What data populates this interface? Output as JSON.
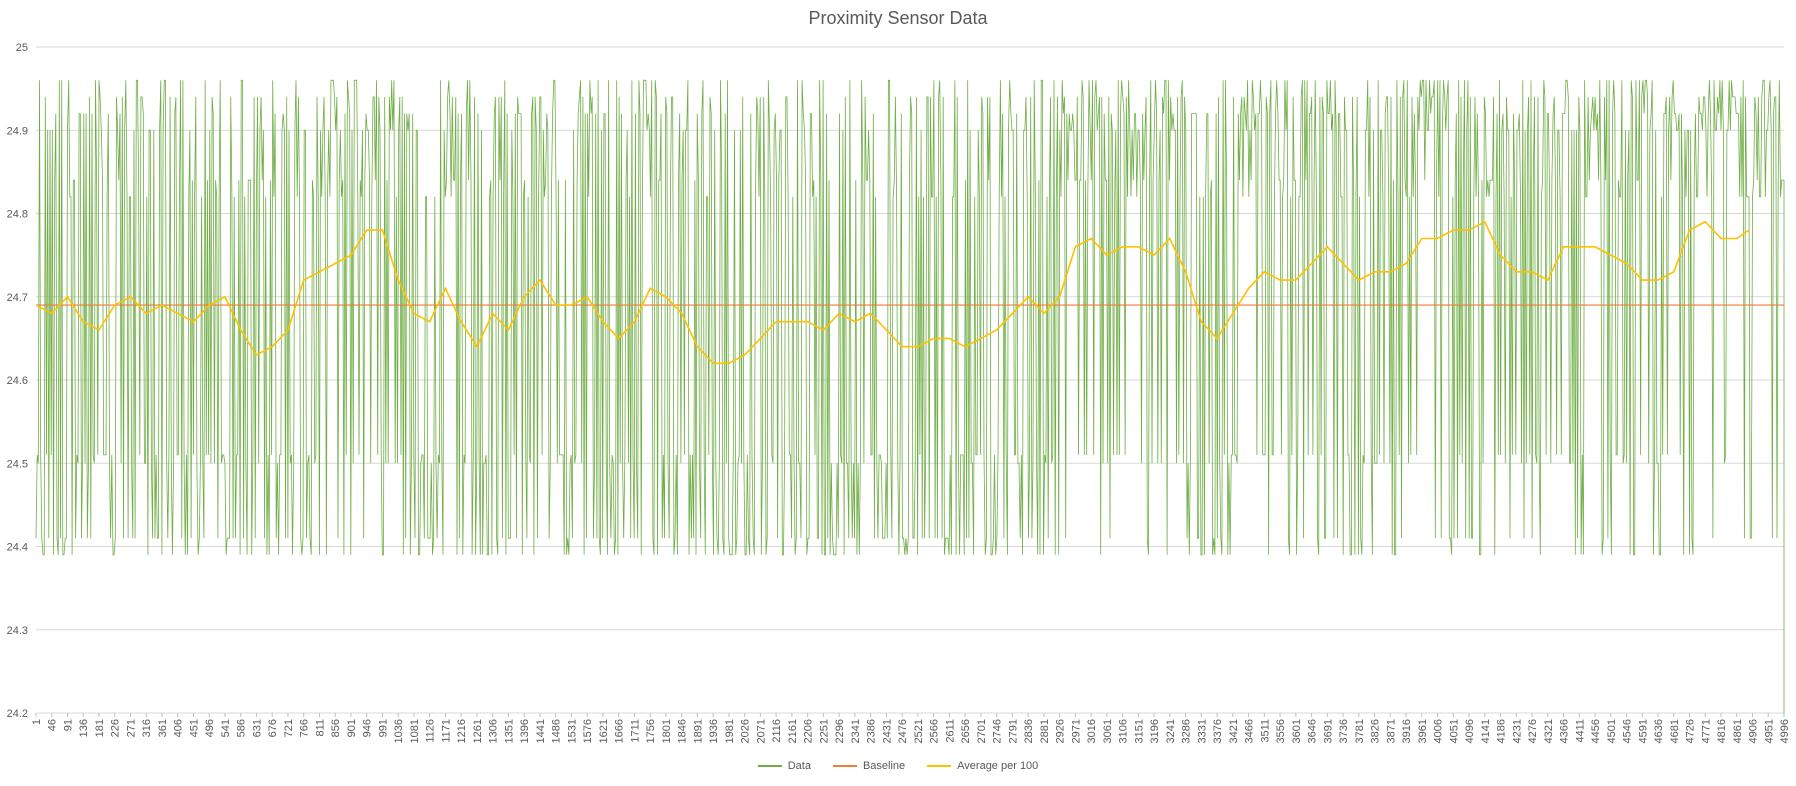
{
  "chart_data": {
    "type": "line",
    "title": "Proximity Sensor Data",
    "xlabel": "",
    "ylabel": "",
    "ylim": [
      24.2,
      25
    ],
    "yticks": [
      "24.2",
      "24.3",
      "24.4",
      "24.5",
      "24.6",
      "24.7",
      "24.8",
      "24.9",
      "25"
    ],
    "grid": true,
    "legend_position": "bottom",
    "x_range": [
      1,
      4996
    ],
    "x_tick_step": 45,
    "series": [
      {
        "name": "Data",
        "color": "#70ad47",
        "note_values": "noisy readings oscillating between 24.39 and 24.96; final reading drops to 24.2",
        "min": 24.39,
        "max": 24.96,
        "last_value": 24.2
      },
      {
        "name": "Baseline",
        "color": "#ed7d31",
        "x": [
          1,
          4996
        ],
        "values": [
          24.69,
          24.69
        ]
      },
      {
        "name": "Average per 100",
        "color": "#ffc000",
        "x": [
          1,
          46,
          91,
          136,
          181,
          226,
          271,
          316,
          361,
          406,
          451,
          496,
          541,
          586,
          631,
          676,
          721,
          766,
          811,
          856,
          901,
          946,
          991,
          1036,
          1081,
          1126,
          1171,
          1216,
          1261,
          1306,
          1351,
          1396,
          1441,
          1486,
          1531,
          1576,
          1621,
          1666,
          1711,
          1756,
          1801,
          1846,
          1891,
          1936,
          1981,
          2026,
          2071,
          2116,
          2161,
          2206,
          2251,
          2296,
          2341,
          2386,
          2431,
          2476,
          2521,
          2566,
          2611,
          2656,
          2701,
          2746,
          2791,
          2836,
          2881,
          2926,
          2971,
          3016,
          3061,
          3106,
          3151,
          3196,
          3241,
          3286,
          3331,
          3376,
          3421,
          3466,
          3511,
          3556,
          3601,
          3646,
          3691,
          3736,
          3781,
          3826,
          3871,
          3916,
          3961,
          4006,
          4051,
          4096,
          4141,
          4186,
          4231,
          4276,
          4321,
          4366,
          4411,
          4456,
          4501,
          4546,
          4591,
          4636,
          4681,
          4726,
          4771,
          4816,
          4861,
          4896
        ],
        "values": [
          24.69,
          24.68,
          24.7,
          24.67,
          24.66,
          24.69,
          24.7,
          24.68,
          24.69,
          24.68,
          24.67,
          24.69,
          24.7,
          24.66,
          24.63,
          24.64,
          24.66,
          24.72,
          24.73,
          24.74,
          24.75,
          24.78,
          24.78,
          24.72,
          24.68,
          24.67,
          24.71,
          24.67,
          24.64,
          24.68,
          24.66,
          24.7,
          24.72,
          24.69,
          24.69,
          24.7,
          24.67,
          24.65,
          24.67,
          24.71,
          24.7,
          24.68,
          24.64,
          24.62,
          24.62,
          24.63,
          24.65,
          24.67,
          24.67,
          24.67,
          24.66,
          24.68,
          24.67,
          24.68,
          24.66,
          24.64,
          24.64,
          24.65,
          24.65,
          24.64,
          24.65,
          24.66,
          24.68,
          24.7,
          24.68,
          24.7,
          24.76,
          24.77,
          24.75,
          24.76,
          24.76,
          24.75,
          24.77,
          24.73,
          24.67,
          24.65,
          24.68,
          24.71,
          24.73,
          24.72,
          24.72,
          24.74,
          24.76,
          24.74,
          24.72,
          24.73,
          24.73,
          24.74,
          24.77,
          24.77,
          24.78,
          24.78,
          24.79,
          24.75,
          24.73,
          24.73,
          24.72,
          24.76,
          24.76,
          24.76,
          24.75,
          24.74,
          24.72,
          24.72,
          24.73,
          24.78,
          24.79,
          24.77,
          24.77,
          24.78
        ]
      }
    ]
  }
}
